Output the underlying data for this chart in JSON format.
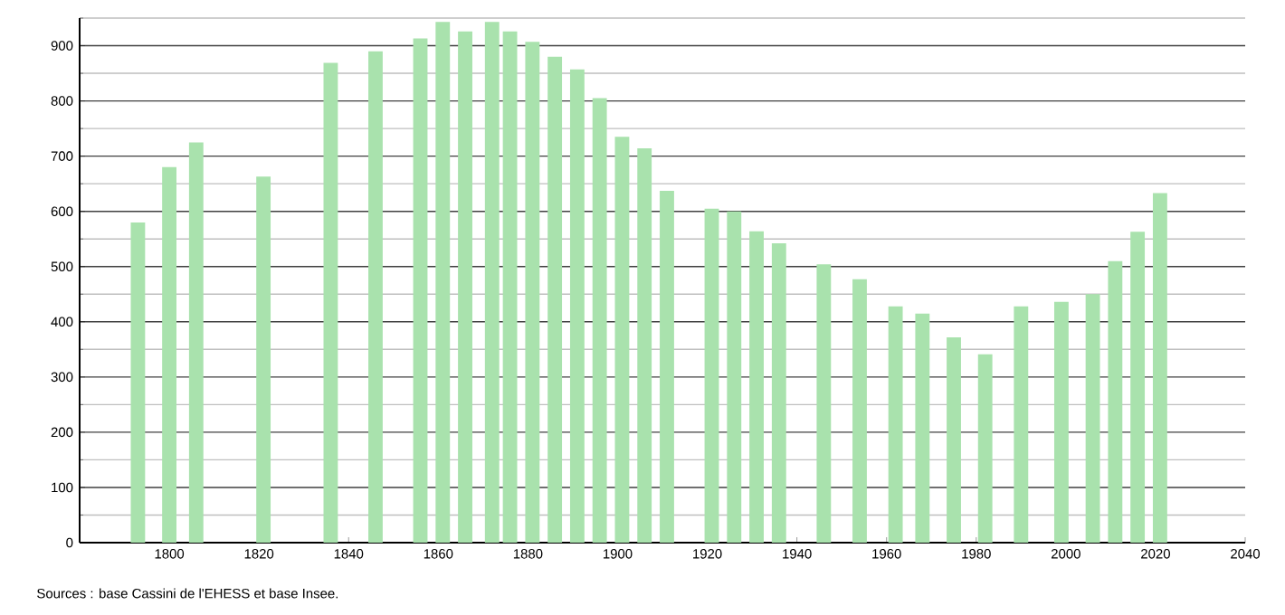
{
  "chart_data": {
    "type": "bar",
    "x": [
      1793,
      1800,
      1806,
      1821,
      1836,
      1846,
      1856,
      1861,
      1866,
      1872,
      1876,
      1881,
      1886,
      1891,
      1896,
      1901,
      1906,
      1911,
      1921,
      1926,
      1931,
      1936,
      1946,
      1954,
      1962,
      1968,
      1975,
      1982,
      1990,
      1999,
      2006,
      2011,
      2016,
      2021
    ],
    "values": [
      580,
      680,
      725,
      663,
      869,
      890,
      913,
      943,
      926,
      943,
      926,
      907,
      880,
      857,
      805,
      735,
      714,
      637,
      605,
      600,
      564,
      542,
      504,
      477,
      428,
      415,
      372,
      341,
      428,
      436,
      450,
      510,
      563,
      633
    ],
    "color": "#a9e2ad",
    "xlim": [
      1780,
      2040
    ],
    "xticks": [
      1800,
      1820,
      1840,
      1860,
      1880,
      1900,
      1920,
      1940,
      1960,
      1980,
      2000,
      2020,
      2040
    ],
    "ylim": [
      0,
      950
    ],
    "yticks": [
      0,
      100,
      200,
      300,
      400,
      500,
      600,
      700,
      800,
      900
    ],
    "grid": "y",
    "annotations": [
      "Sources : base Cassini de l'EHESS et base Insee."
    ]
  }
}
